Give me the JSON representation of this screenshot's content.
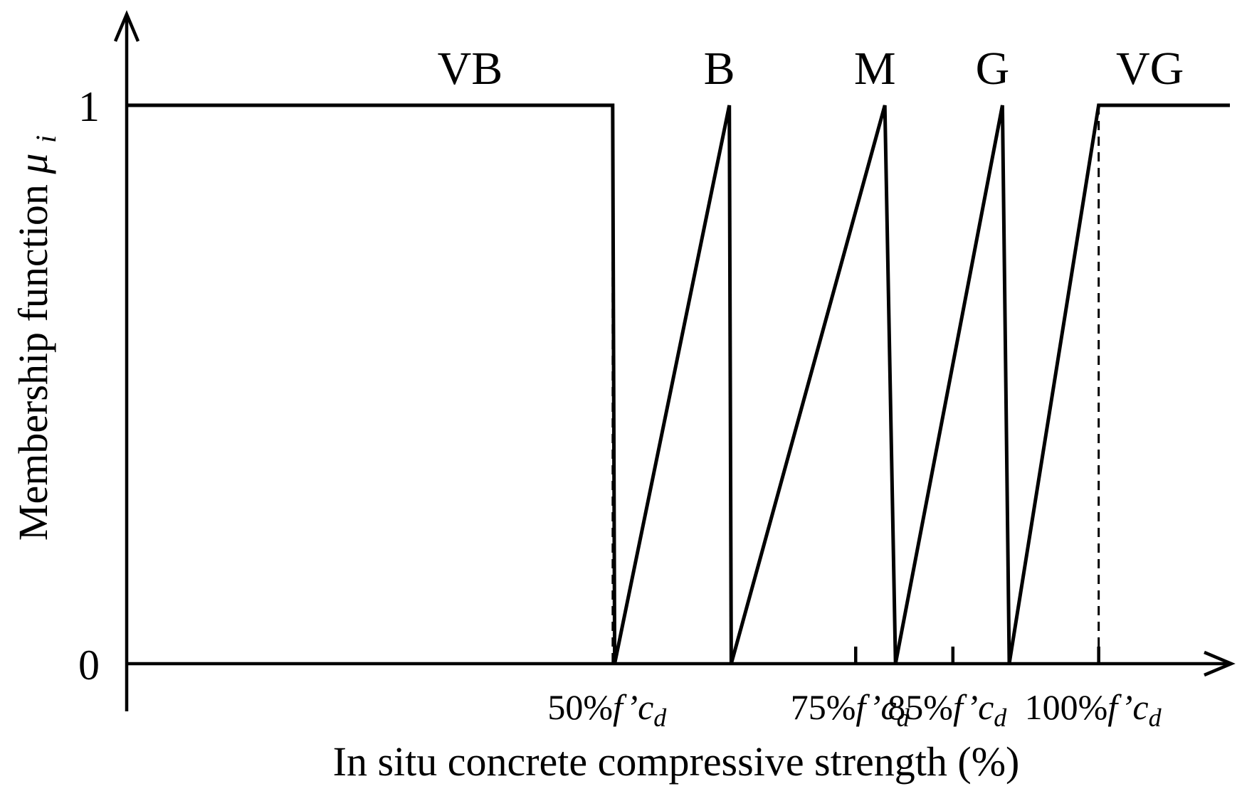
{
  "chart_data": {
    "type": "line",
    "title": "",
    "xlabel": "In situ concrete compressive strength (%)",
    "ylabel": "Membership function",
    "ylabel_symbol": "μ",
    "ylabel_subscript": "i",
    "y_ticks": [
      {
        "value": 0,
        "label": "0"
      },
      {
        "value": 1,
        "label": "1"
      }
    ],
    "x_ticks": [
      {
        "value": 50,
        "prefix": "50%",
        "symbol": "f’c",
        "subscript": "d",
        "tick": false
      },
      {
        "value": 75,
        "prefix": "75%",
        "symbol": "f’c",
        "subscript": "d",
        "tick": true
      },
      {
        "value": 85,
        "prefix": "85%",
        "symbol": "f’c",
        "subscript": "d",
        "tick": true
      },
      {
        "value": 100,
        "prefix": "100%",
        "symbol": "f’c",
        "subscript": "d",
        "tick": true
      }
    ],
    "xlim": [
      0,
      113.5
    ],
    "ylim": [
      0,
      1
    ],
    "grid": false,
    "reference_lines_dashed": [
      50,
      100
    ],
    "series": [
      {
        "name": "VB",
        "x": [
          0,
          50,
          50.2
        ],
        "y": [
          1,
          1,
          0
        ]
      },
      {
        "name": "B",
        "x": [
          50.2,
          62,
          62.2
        ],
        "y": [
          0,
          1,
          0
        ]
      },
      {
        "name": "M",
        "x": [
          62.2,
          78,
          79.1
        ],
        "y": [
          0,
          1,
          0
        ]
      },
      {
        "name": "G",
        "x": [
          79.1,
          90.1,
          90.8
        ],
        "y": [
          0,
          1,
          0
        ]
      },
      {
        "name": "VG",
        "x": [
          90.8,
          100,
          100,
          113.5
        ],
        "y": [
          0,
          1,
          1,
          1
        ]
      }
    ]
  }
}
